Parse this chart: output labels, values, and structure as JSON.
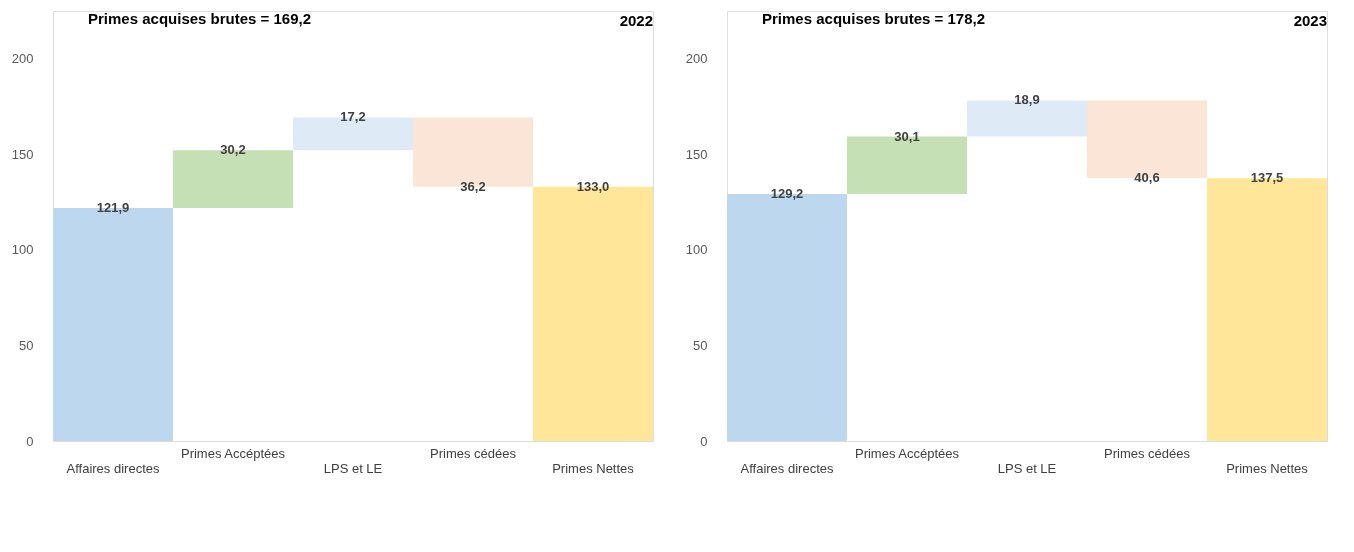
{
  "chart_data": [
    {
      "type": "bar",
      "title": "2022",
      "annotations": [
        "Primes acquises brutes = 169,2"
      ],
      "categories": [
        "Affaires directes",
        "Primes Accéptées",
        "LPS et LE",
        "Primes cédées",
        "Primes Nettes"
      ],
      "values": [
        121.9,
        30.2,
        17.2,
        -36.2,
        133.0
      ],
      "base": [
        0,
        121.9,
        152.1,
        169.3,
        0
      ],
      "colors": [
        "#bdd7ee",
        "#c5e0b4",
        "#deebf7",
        "#fbe5d6",
        "#ffe699"
      ],
      "value_labels": [
        "121,9",
        "30,2",
        "17,2",
        "36,2",
        "133,0"
      ],
      "ylim": [
        0,
        225
      ],
      "yticks": [
        0,
        50,
        100,
        150,
        200
      ],
      "grid": false
    },
    {
      "type": "bar",
      "title": "2023",
      "annotations": [
        "Primes acquises brutes = 178,2"
      ],
      "categories": [
        "Affaires directes",
        "Primes Accéptées",
        "LPS et LE",
        "Primes cédées",
        "Primes Nettes"
      ],
      "values": [
        129.2,
        30.1,
        18.9,
        -40.6,
        137.5
      ],
      "base": [
        0,
        129.2,
        159.3,
        178.2,
        0
      ],
      "colors": [
        "#bdd7ee",
        "#c5e0b4",
        "#deebf7",
        "#fbe5d6",
        "#ffe699"
      ],
      "value_labels": [
        "129,2",
        "30,1",
        "18,9",
        "40,6",
        "137,5"
      ],
      "ylim": [
        0,
        225
      ],
      "yticks": [
        0,
        50,
        100,
        150,
        200
      ],
      "grid": false
    }
  ]
}
